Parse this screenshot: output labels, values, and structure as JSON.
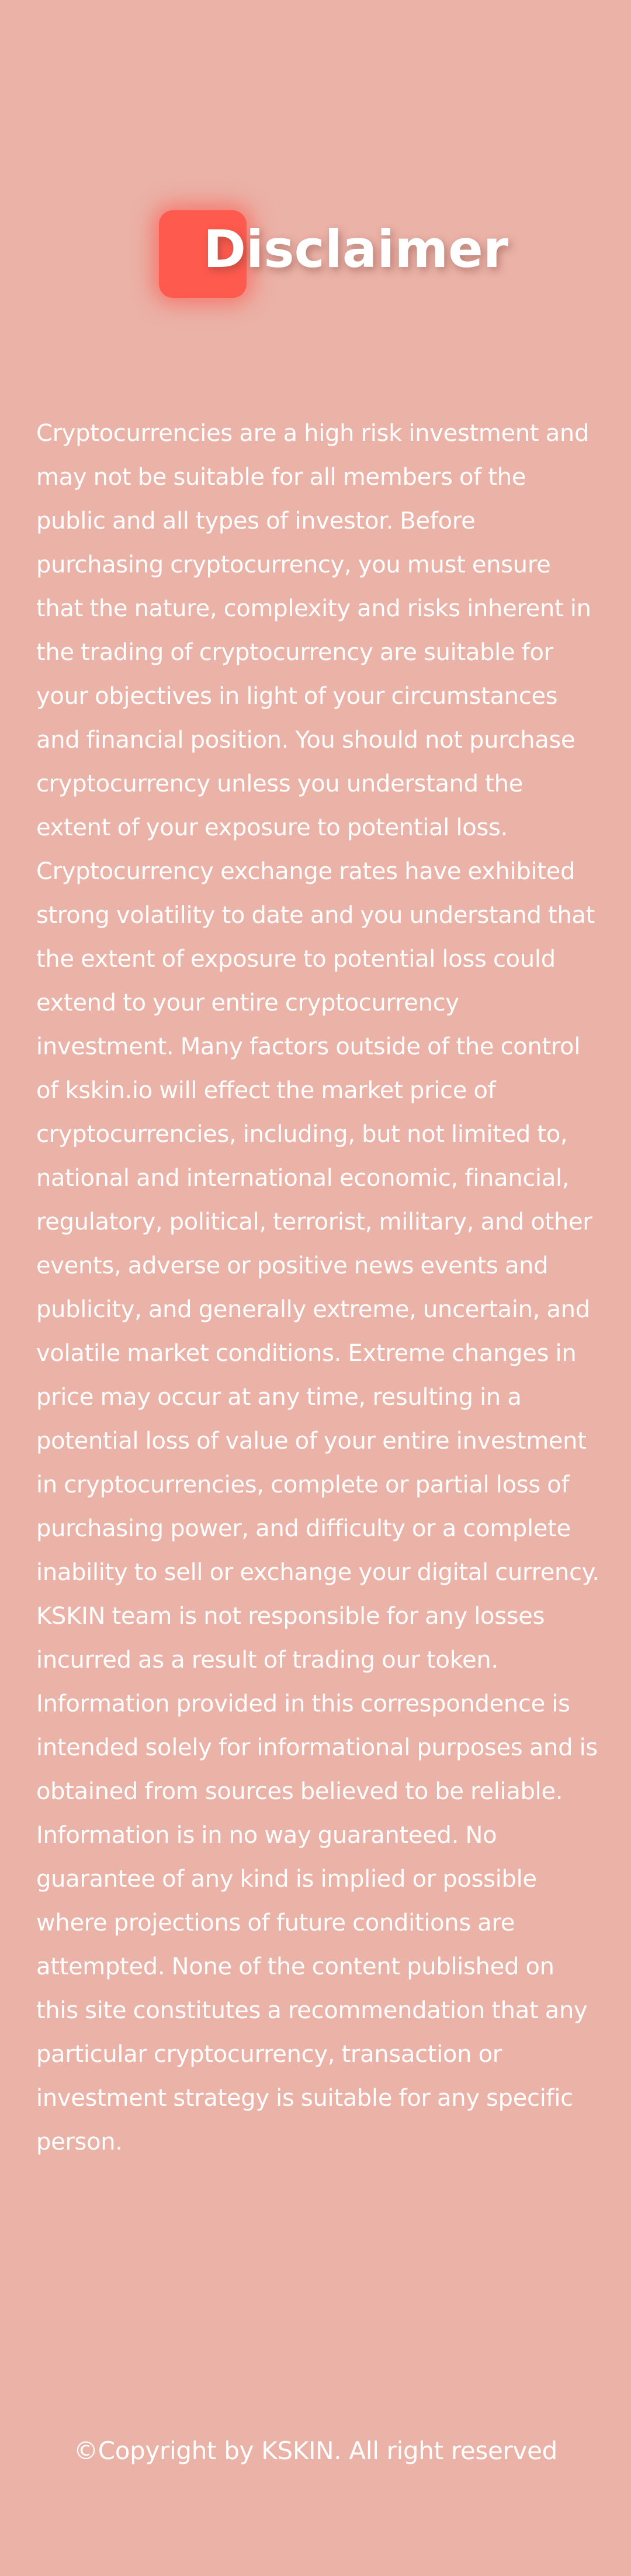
{
  "header": {
    "title": "Disclaimer"
  },
  "disclaimer": {
    "text": "Cryptocurrencies are a high risk investment and may not be suitable for all members of the public and all types of investor. Before purchasing cryptocurrency, you must ensure that the nature, complexity and risks inherent in the trading of cryptocurrency are suitable for your objectives in light of your circumstances and financial position. You should not purchase cryptocurrency unless you understand the extent of your exposure to potential loss. Cryptocurrency exchange rates have exhibited strong volatility to date and you understand that the extent of exposure to potential loss could extend to your entire cryptocurrency investment. Many factors outside of the control of kskin.io will effect the market price of cryptocurrencies, including, but not limited to, national and international economic, financial, regulatory, political, terrorist, military, and other events, adverse or positive news events and publicity, and generally extreme, uncertain, and volatile market conditions. Extreme changes in price may occur at any time, resulting in a potential loss of value of your entire investment in cryptocurrencies, complete or partial loss of purchasing power, and difficulty or a complete inability to sell or exchange your digital currency. KSKIN team is not responsible for any losses incurred as a result of trading our token. Information provided in this correspondence is intended solely for informational purposes and is obtained from sources believed to be reliable. Information is in no way guaranteed. No guarantee of any kind is implied or possible where projections of future conditions are attempted. None of the content published on this site constitutes a recommendation that any particular cryptocurrency, transaction or investment strategy is suitable for any specific person."
  },
  "footer": {
    "copyright": "©Copyright by KSKIN. All right reserved"
  },
  "colors": {
    "background": "#ebb2a7",
    "accent": "#ff5a4e",
    "text": "#ffffff"
  }
}
